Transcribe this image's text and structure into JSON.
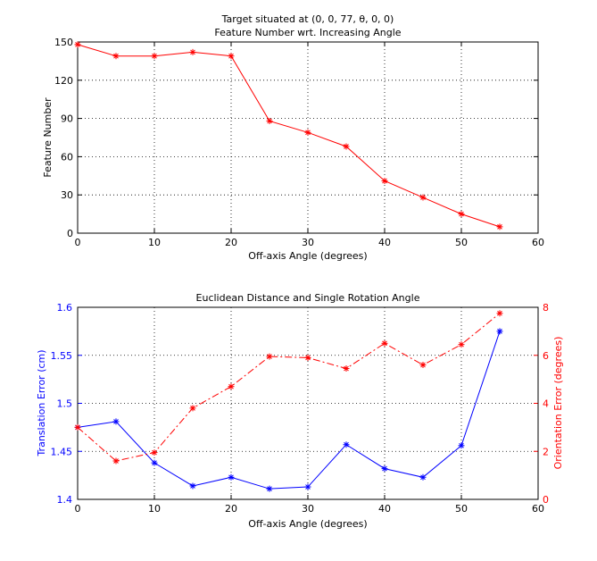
{
  "chart_data": [
    {
      "type": "line",
      "title_line1": "Target situated at (0, 0, 77, θ, 0, 0)",
      "title_line2": "Feature Number wrt. Increasing Angle",
      "xlabel": "Off-axis Angle (degrees)",
      "ylabel": "Feature Number",
      "xlim": [
        0,
        60
      ],
      "ylim": [
        0,
        150
      ],
      "xticks": [
        0,
        10,
        20,
        30,
        40,
        50,
        60
      ],
      "yticks": [
        0,
        30,
        60,
        90,
        120,
        150
      ],
      "grid": true,
      "x": [
        0,
        5,
        10,
        15,
        20,
        25,
        30,
        35,
        40,
        45,
        50,
        55
      ],
      "series": [
        {
          "color": "#ff0000",
          "linestyle": "solid",
          "marker": "*",
          "values": [
            148,
            139,
            139,
            142,
            139,
            88,
            79,
            68,
            41,
            28,
            15,
            5
          ]
        }
      ]
    },
    {
      "type": "line",
      "title": "Euclidean Distance and Single Rotation Angle",
      "xlabel": "Off-axis Angle (degrees)",
      "ylabel_left": "Translation Error (cm)",
      "ylabel_right": "Orientation Error (degrees)",
      "xlim": [
        0,
        60
      ],
      "ylim_left": [
        1.4,
        1.6
      ],
      "ylim_right": [
        0,
        8
      ],
      "xticks": [
        0,
        10,
        20,
        30,
        40,
        50,
        60
      ],
      "yticks_left": [
        "1.4",
        "1.45",
        "1.5",
        "1.55",
        "1.6"
      ],
      "yticks_right": [
        "0",
        "2",
        "4",
        "6",
        "8"
      ],
      "grid": true,
      "x": [
        0,
        5,
        10,
        15,
        20,
        25,
        30,
        35,
        40,
        45,
        50,
        55
      ],
      "series": [
        {
          "axis": "left",
          "color": "#0000ff",
          "linestyle": "solid",
          "marker": "*",
          "values": [
            1.475,
            1.481,
            1.438,
            1.414,
            1.423,
            1.411,
            1.413,
            1.457,
            1.432,
            1.423,
            1.456,
            1.575
          ]
        },
        {
          "axis": "right",
          "color": "#ff0000",
          "linestyle": "dashdot",
          "marker": "*",
          "values": [
            3.0,
            1.6,
            1.95,
            3.8,
            4.7,
            5.95,
            5.9,
            5.45,
            6.5,
            5.6,
            6.45,
            7.75
          ]
        }
      ]
    }
  ]
}
